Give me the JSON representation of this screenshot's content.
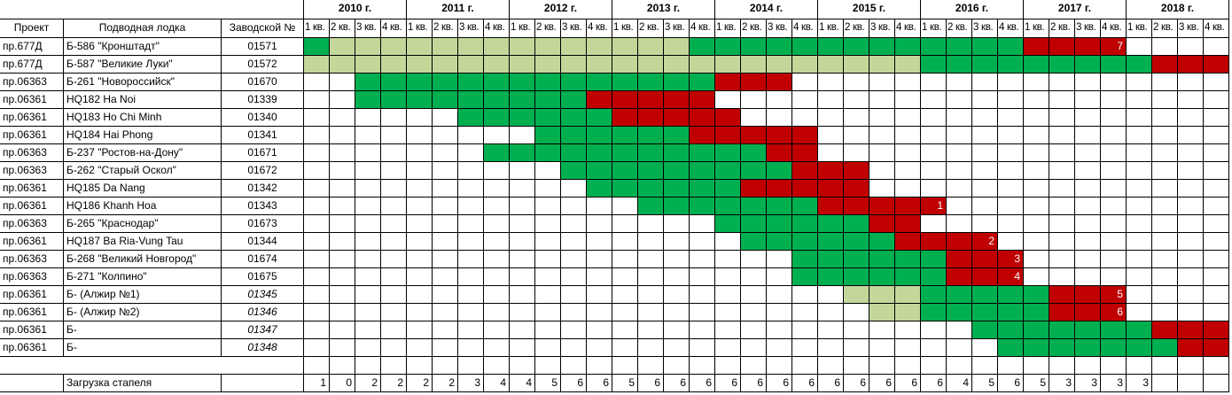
{
  "header": {
    "project": "Проект",
    "boat": "Подводная лодка",
    "factory_no": "Заводской №",
    "years": [
      "2010 г.",
      "2011 г.",
      "2012 г.",
      "2013 г.",
      "2014 г.",
      "2015 г.",
      "2016 г.",
      "2017 г.",
      "2018 г."
    ],
    "quarters": [
      "1 кв.",
      "2 кв.",
      "3 кв.",
      "4 кв."
    ]
  },
  "colors": {
    "g": "#00b050",
    "r": "#c00000",
    "l": "#c4d79b"
  },
  "rows": [
    {
      "project": "пр.677Д",
      "boat": "Б-586 \"Кронштадт\"",
      "factory_no": "01571",
      "italic": false,
      "cells": [
        "g",
        "l",
        "l",
        "l",
        "l",
        "l",
        "l",
        "l",
        "l",
        "l",
        "l",
        "l",
        "l",
        "l",
        "l",
        "g",
        "g",
        "g",
        "g",
        "g",
        "g",
        "g",
        "g",
        "g",
        "g",
        "g",
        "g",
        "g",
        "r",
        "r",
        "r",
        {
          "fill": "r",
          "label": "7"
        },
        null,
        null,
        null,
        null
      ]
    },
    {
      "project": "пр.677Д",
      "boat": "Б-587 \"Великие Луки\"",
      "factory_no": "01572",
      "italic": false,
      "cells": [
        "l",
        "l",
        "l",
        "l",
        "l",
        "l",
        "l",
        "l",
        "l",
        "l",
        "l",
        "l",
        "l",
        "l",
        "l",
        "l",
        "l",
        "l",
        "l",
        "l",
        "l",
        "l",
        "l",
        "l",
        "g",
        "g",
        "g",
        "g",
        "g",
        "g",
        "g",
        "g",
        "g",
        "r",
        "r",
        "r"
      ]
    },
    {
      "project": "пр.06363",
      "boat": "Б-261 \"Новороссийск\"",
      "factory_no": "01670",
      "italic": false,
      "cells": [
        null,
        null,
        "g",
        "g",
        "g",
        "g",
        "g",
        "g",
        "g",
        "g",
        "g",
        "g",
        "g",
        "g",
        "g",
        "g",
        "r",
        "r",
        "r",
        null,
        null,
        null,
        null,
        null,
        null,
        null,
        null,
        null,
        null,
        null,
        null,
        null,
        null,
        null,
        null,
        null
      ]
    },
    {
      "project": "пр.06361",
      "boat": "HQ182 Ha Noi",
      "factory_no": "01339",
      "italic": false,
      "cells": [
        null,
        null,
        "g",
        "g",
        "g",
        "g",
        "g",
        "g",
        "g",
        "g",
        "g",
        "r",
        "r",
        "r",
        "r",
        "r",
        null,
        null,
        null,
        null,
        null,
        null,
        null,
        null,
        null,
        null,
        null,
        null,
        null,
        null,
        null,
        null,
        null,
        null,
        null,
        null
      ]
    },
    {
      "project": "пр.06361",
      "boat": "HQ183 Ho Chi Minh",
      "factory_no": "01340",
      "italic": false,
      "cells": [
        null,
        null,
        null,
        null,
        null,
        null,
        "g",
        "g",
        "g",
        "g",
        "g",
        "g",
        "r",
        "r",
        "r",
        "r",
        "r",
        null,
        null,
        null,
        null,
        null,
        null,
        null,
        null,
        null,
        null,
        null,
        null,
        null,
        null,
        null,
        null,
        null,
        null,
        null
      ]
    },
    {
      "project": "пр.06361",
      "boat": "HQ184 Hai Phong",
      "factory_no": "01341",
      "italic": false,
      "cells": [
        null,
        null,
        null,
        null,
        null,
        null,
        null,
        null,
        null,
        "g",
        "g",
        "g",
        "g",
        "g",
        "g",
        "r",
        "r",
        "r",
        "r",
        "r",
        null,
        null,
        null,
        null,
        null,
        null,
        null,
        null,
        null,
        null,
        null,
        null,
        null,
        null,
        null,
        null
      ]
    },
    {
      "project": "пр.06363",
      "boat": "Б-237 \"Ростов-на-Дону\"",
      "factory_no": "01671",
      "italic": false,
      "cells": [
        null,
        null,
        null,
        null,
        null,
        null,
        null,
        "g",
        "g",
        "g",
        "g",
        "g",
        "g",
        "g",
        "g",
        "g",
        "g",
        "g",
        "r",
        "r",
        null,
        null,
        null,
        null,
        null,
        null,
        null,
        null,
        null,
        null,
        null,
        null,
        null,
        null,
        null,
        null
      ]
    },
    {
      "project": "пр.06363",
      "boat": "Б-262 \"Старый Оскол\"",
      "factory_no": "01672",
      "italic": false,
      "cells": [
        null,
        null,
        null,
        null,
        null,
        null,
        null,
        null,
        null,
        null,
        "g",
        "g",
        "g",
        "g",
        "g",
        "g",
        "g",
        "g",
        "g",
        "r",
        "r",
        "r",
        null,
        null,
        null,
        null,
        null,
        null,
        null,
        null,
        null,
        null,
        null,
        null,
        null,
        null
      ]
    },
    {
      "project": "пр.06361",
      "boat": "HQ185 Da Nang",
      "factory_no": "01342",
      "italic": false,
      "cells": [
        null,
        null,
        null,
        null,
        null,
        null,
        null,
        null,
        null,
        null,
        null,
        "g",
        "g",
        "g",
        "g",
        "g",
        "g",
        "r",
        "r",
        "r",
        "r",
        "r",
        null,
        null,
        null,
        null,
        null,
        null,
        null,
        null,
        null,
        null,
        null,
        null,
        null,
        null
      ]
    },
    {
      "project": "пр.06361",
      "boat": "HQ186 Khanh Hoa",
      "factory_no": "01343",
      "italic": false,
      "cells": [
        null,
        null,
        null,
        null,
        null,
        null,
        null,
        null,
        null,
        null,
        null,
        null,
        null,
        "g",
        "g",
        "g",
        "g",
        "g",
        "g",
        "g",
        "r",
        "r",
        "r",
        "r",
        {
          "fill": "r",
          "label": "1"
        },
        null,
        null,
        null,
        null,
        null,
        null,
        null,
        null,
        null,
        null,
        null
      ]
    },
    {
      "project": "пр.06363",
      "boat": "Б-265 \"Краснодар\"",
      "factory_no": "01673",
      "italic": false,
      "cells": [
        null,
        null,
        null,
        null,
        null,
        null,
        null,
        null,
        null,
        null,
        null,
        null,
        null,
        null,
        null,
        null,
        "g",
        "g",
        "g",
        "g",
        "g",
        "g",
        "r",
        "r",
        null,
        null,
        null,
        null,
        null,
        null,
        null,
        null,
        null,
        null,
        null,
        null
      ]
    },
    {
      "project": "пр.06361",
      "boat": "HQ187 Ba Ria-Vung Tau",
      "factory_no": "01344",
      "italic": false,
      "cells": [
        null,
        null,
        null,
        null,
        null,
        null,
        null,
        null,
        null,
        null,
        null,
        null,
        null,
        null,
        null,
        null,
        null,
        "g",
        "g",
        "g",
        "g",
        "g",
        "g",
        "r",
        "r",
        "r",
        {
          "fill": "r",
          "label": "2"
        },
        null,
        null,
        null,
        null,
        null,
        null,
        null,
        null,
        null
      ]
    },
    {
      "project": "пр.06363",
      "boat": "Б-268 \"Великий Новгород\"",
      "factory_no": "01674",
      "italic": false,
      "cells": [
        null,
        null,
        null,
        null,
        null,
        null,
        null,
        null,
        null,
        null,
        null,
        null,
        null,
        null,
        null,
        null,
        null,
        null,
        null,
        "g",
        "g",
        "g",
        "g",
        "g",
        "g",
        "r",
        "r",
        {
          "fill": "r",
          "label": "3"
        },
        null,
        null,
        null,
        null,
        null,
        null,
        null,
        null
      ]
    },
    {
      "project": "пр.06363",
      "boat": "Б-271 \"Колпино\"",
      "factory_no": "01675",
      "italic": false,
      "cells": [
        null,
        null,
        null,
        null,
        null,
        null,
        null,
        null,
        null,
        null,
        null,
        null,
        null,
        null,
        null,
        null,
        null,
        null,
        null,
        "g",
        "g",
        "g",
        "g",
        "g",
        "g",
        "r",
        "r",
        {
          "fill": "r",
          "label": "4"
        },
        null,
        null,
        null,
        null,
        null,
        null,
        null,
        null
      ]
    },
    {
      "project": "пр.06361",
      "boat": "Б- (Алжир №1)",
      "factory_no": "01345",
      "italic": true,
      "cells": [
        null,
        null,
        null,
        null,
        null,
        null,
        null,
        null,
        null,
        null,
        null,
        null,
        null,
        null,
        null,
        null,
        null,
        null,
        null,
        null,
        null,
        "l",
        "l",
        "l",
        "g",
        "g",
        "g",
        "g",
        "g",
        "r",
        "r",
        {
          "fill": "r",
          "label": "5"
        },
        null,
        null,
        null,
        null
      ]
    },
    {
      "project": "пр.06361",
      "boat": "Б- (Алжир №2)",
      "factory_no": "01346",
      "italic": true,
      "cells": [
        null,
        null,
        null,
        null,
        null,
        null,
        null,
        null,
        null,
        null,
        null,
        null,
        null,
        null,
        null,
        null,
        null,
        null,
        null,
        null,
        null,
        null,
        "l",
        "l",
        "g",
        "g",
        "g",
        "g",
        "g",
        "r",
        "r",
        {
          "fill": "r",
          "label": "6"
        },
        null,
        null,
        null,
        null
      ]
    },
    {
      "project": "пр.06361",
      "boat": "Б-",
      "factory_no": "01347",
      "italic": true,
      "cells": [
        null,
        null,
        null,
        null,
        null,
        null,
        null,
        null,
        null,
        null,
        null,
        null,
        null,
        null,
        null,
        null,
        null,
        null,
        null,
        null,
        null,
        null,
        null,
        null,
        null,
        null,
        "g",
        "g",
        "g",
        "g",
        "g",
        "g",
        "g",
        "r",
        "r",
        "r"
      ]
    },
    {
      "project": "пр.06361",
      "boat": "Б-",
      "factory_no": "01348",
      "italic": true,
      "cells": [
        null,
        null,
        null,
        null,
        null,
        null,
        null,
        null,
        null,
        null,
        null,
        null,
        null,
        null,
        null,
        null,
        null,
        null,
        null,
        null,
        null,
        null,
        null,
        null,
        null,
        null,
        null,
        "g",
        "g",
        "g",
        "g",
        "g",
        "g",
        "g",
        "r",
        "r"
      ]
    }
  ],
  "load": {
    "label": "Загрузка стапеля",
    "values": [
      1,
      0,
      2,
      2,
      2,
      2,
      3,
      4,
      4,
      5,
      6,
      6,
      5,
      6,
      6,
      6,
      6,
      6,
      6,
      6,
      6,
      6,
      6,
      6,
      6,
      4,
      5,
      6,
      5,
      3,
      3,
      3,
      3,
      null,
      null,
      null
    ]
  }
}
